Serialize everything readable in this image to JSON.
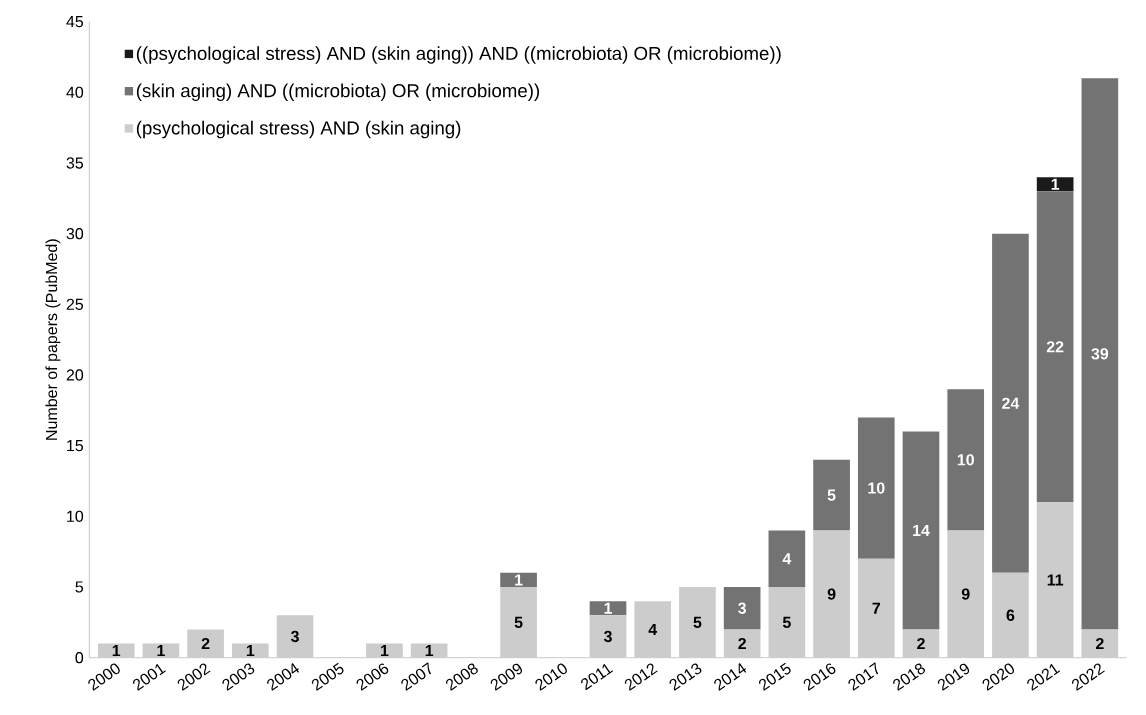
{
  "chart_data": {
    "type": "bar",
    "stacked": true,
    "ylabel": "Number of papers (PubMed)",
    "categories": [
      "2000",
      "2001",
      "2002",
      "2003",
      "2004",
      "2005",
      "2006",
      "2007",
      "2008",
      "2009",
      "2010",
      "2011",
      "2012",
      "2013",
      "2014",
      "2015",
      "2016",
      "2017",
      "2018",
      "2019",
      "2020",
      "2021",
      "2022"
    ],
    "series": [
      {
        "name": "(psychological stress) AND (skin aging)",
        "color": "#cccccc",
        "values": [
          1,
          1,
          2,
          1,
          3,
          0,
          1,
          1,
          0,
          5,
          0,
          3,
          4,
          5,
          2,
          5,
          9,
          7,
          2,
          9,
          6,
          11,
          2
        ],
        "value_labels": [
          "1",
          "1",
          "2",
          "1",
          "3",
          null,
          "1",
          "1",
          null,
          "5",
          null,
          "3",
          "4",
          "5",
          "2",
          "5",
          "9",
          "7",
          "2",
          "9",
          "6",
          "11",
          "2"
        ]
      },
      {
        "name": "(skin aging) AND ((microbiota) OR (microbiome))",
        "color": "#737373",
        "values": [
          0,
          0,
          0,
          0,
          0,
          0,
          0,
          0,
          0,
          1,
          0,
          1,
          0,
          0,
          3,
          4,
          5,
          10,
          14,
          10,
          24,
          22,
          39
        ],
        "value_labels": [
          null,
          null,
          null,
          null,
          null,
          null,
          null,
          null,
          null,
          "1",
          null,
          "1",
          null,
          null,
          "3",
          "4",
          "5",
          "10",
          "14",
          "10",
          "24",
          "22",
          "39"
        ]
      },
      {
        "name": "((psychological stress) AND (skin aging)) AND ((microbiota) OR (microbiome))",
        "color": "#1a1a1a",
        "values": [
          0,
          0,
          0,
          0,
          0,
          0,
          0,
          0,
          0,
          0,
          0,
          0,
          0,
          0,
          0,
          0,
          0,
          0,
          0,
          0,
          0,
          1,
          0
        ],
        "value_labels": [
          null,
          null,
          null,
          null,
          null,
          null,
          null,
          null,
          null,
          null,
          null,
          null,
          null,
          null,
          null,
          null,
          null,
          null,
          null,
          null,
          null,
          "1",
          null
        ]
      }
    ],
    "ylim": [
      0,
      45
    ],
    "yticks": [
      0,
      5,
      10,
      15,
      20,
      25,
      30,
      35,
      40,
      45
    ],
    "grid": false,
    "legend": "top left"
  }
}
